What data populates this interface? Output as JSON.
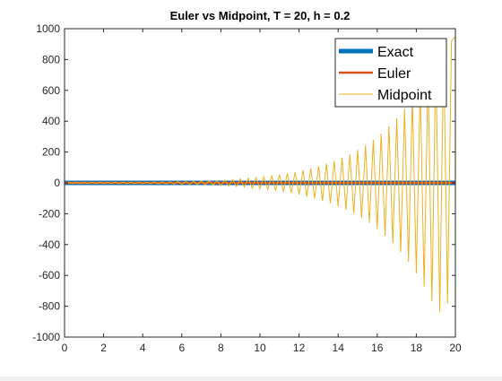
{
  "chart_data": {
    "type": "line",
    "title": "Euler vs Midpoint, T = 20, h = 0.2",
    "xlabel": "",
    "ylabel": "",
    "xlim": [
      0,
      20
    ],
    "ylim": [
      -1000,
      1000
    ],
    "xticks": [
      0,
      2,
      4,
      6,
      8,
      10,
      12,
      14,
      16,
      18,
      20
    ],
    "yticks": [
      1000,
      800,
      600,
      400,
      200,
      0,
      -200,
      -400,
      -600,
      -800,
      -1000
    ],
    "grid": false,
    "legend_position": "top-right",
    "series": [
      {
        "name": "Exact",
        "color": "#0072bd",
        "style": "thick-line",
        "x": [
          0,
          20
        ],
        "y": [
          0,
          0
        ]
      },
      {
        "name": "Euler",
        "color": "#d95319",
        "style": "line",
        "x": [
          0,
          20
        ],
        "y": [
          0,
          0
        ]
      },
      {
        "name": "Midpoint",
        "color": "#edb120",
        "style": "thin-line",
        "x": [
          0,
          0.2,
          0.4,
          0.6,
          0.8,
          1.0,
          1.2,
          1.4,
          1.6,
          1.8,
          2.0,
          2.2,
          2.4,
          2.6,
          2.8,
          3.0,
          3.2,
          3.4,
          3.6,
          3.8,
          4.0,
          4.2,
          4.4,
          4.6,
          4.8,
          5.0,
          5.2,
          5.4,
          5.6,
          5.8,
          6.0,
          6.2,
          6.4,
          6.6,
          6.8,
          7.0,
          7.2,
          7.4,
          7.6,
          7.8,
          8.0,
          8.2,
          8.4,
          8.6,
          8.8,
          9.0,
          9.2,
          9.4,
          9.6,
          9.8,
          10.0,
          10.2,
          10.4,
          10.6,
          10.8,
          11.0,
          11.2,
          11.4,
          11.6,
          11.8,
          12.0,
          12.2,
          12.4,
          12.6,
          12.8,
          13.0,
          13.2,
          13.4,
          13.6,
          13.8,
          14.0,
          14.2,
          14.4,
          14.6,
          14.8,
          15.0,
          15.2,
          15.4,
          15.6,
          15.8,
          16.0,
          16.2,
          16.4,
          16.6,
          16.8,
          17.0,
          17.2,
          17.4,
          17.6,
          17.8,
          18.0,
          18.2,
          18.4,
          18.6,
          18.8,
          19.0,
          19.2,
          19.4,
          19.6,
          19.8,
          20.0
        ],
        "y": [
          0,
          2,
          -2,
          2,
          -2,
          3,
          -3,
          3,
          -3,
          3,
          -3,
          3,
          -3,
          4,
          -4,
          4,
          -4,
          4,
          -4,
          5,
          -5,
          5,
          -5,
          6,
          -6,
          6,
          -7,
          7,
          -8,
          8,
          -9,
          9,
          -10,
          10,
          -11,
          12,
          -13,
          14,
          -15,
          16,
          -18,
          19,
          -21,
          22,
          -24,
          26,
          -28,
          30,
          -33,
          35,
          -38,
          40,
          -43,
          46,
          -50,
          53,
          -57,
          62,
          -66,
          71,
          -76,
          82,
          -88,
          94,
          -101,
          108,
          -116,
          124,
          -133,
          142,
          -152,
          163,
          -174,
          186,
          -199,
          213,
          -228,
          244,
          -261,
          279,
          -299,
          320,
          -342,
          366,
          -392,
          419,
          -449,
          480,
          -513,
          549,
          -587,
          628,
          -672,
          719,
          -769,
          823,
          -840,
          860,
          -780,
          920,
          950
        ]
      }
    ]
  }
}
